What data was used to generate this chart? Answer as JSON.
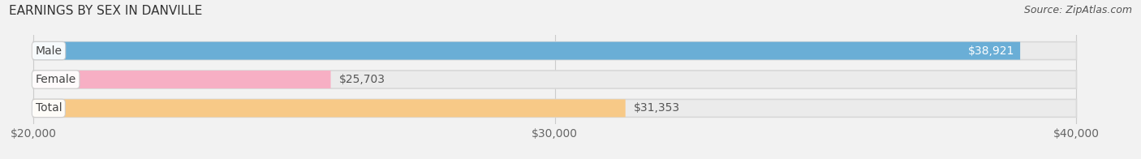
{
  "title": "EARNINGS BY SEX IN DANVILLE",
  "source": "Source: ZipAtlas.com",
  "categories": [
    "Male",
    "Female",
    "Total"
  ],
  "values": [
    38921,
    25703,
    31353
  ],
  "bar_colors": [
    "#6aaed6",
    "#f7afc4",
    "#f7c987"
  ],
  "bar_bg_color": "#e8e8ea",
  "label_texts": [
    "$38,921",
    "$25,703",
    "$31,353"
  ],
  "xmin": 20000,
  "xmax": 40000,
  "xticks": [
    20000,
    30000,
    40000
  ],
  "xtick_labels": [
    "$20,000",
    "$30,000",
    "$40,000"
  ],
  "background_color": "#f2f2f2",
  "bar_height": 0.62,
  "title_fontsize": 11,
  "label_fontsize": 10,
  "tick_fontsize": 10,
  "category_fontsize": 10
}
